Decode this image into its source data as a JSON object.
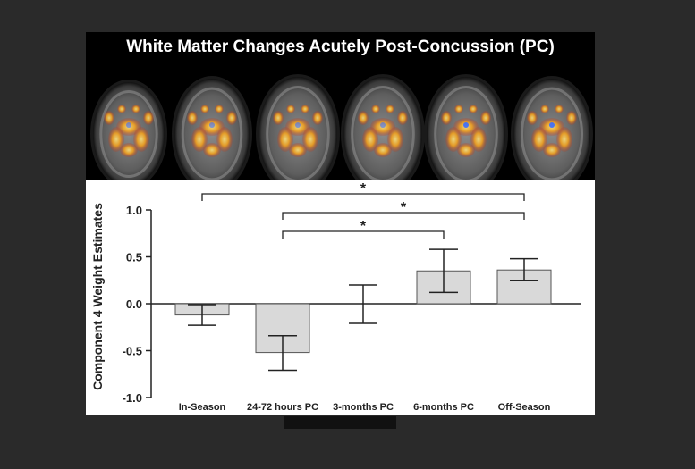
{
  "figure_title": "White Matter Changes Acutely Post-Concussion (PC)",
  "colors": {
    "bar_fill": "#d9d9d9",
    "bar_stroke": "#555555",
    "page_background": "#2a2a2a",
    "figure_background": "#000000"
  },
  "chart_data": {
    "type": "bar",
    "title": "",
    "xlabel": "",
    "ylabel": "Component 4 Weight Estimates",
    "ylim": [
      -1.0,
      1.0
    ],
    "yticks": [
      "1.0",
      "0.5",
      "0.0",
      "-0.5",
      "-1.0"
    ],
    "ytick_values": [
      1.0,
      0.5,
      0.0,
      -0.5,
      -1.0
    ],
    "categories": [
      "In-Season",
      "24-72 hours PC",
      "3-months PC",
      "6-months PC",
      "Off-Season"
    ],
    "values": [
      -0.12,
      -0.52,
      0.0,
      0.35,
      0.36
    ],
    "error_low": [
      -0.23,
      -0.71,
      -0.21,
      0.12,
      0.25
    ],
    "error_high": [
      -0.01,
      -0.34,
      0.2,
      0.58,
      0.48
    ],
    "significance": [
      {
        "from": "In-Season",
        "to": "Off-Season",
        "label": "*"
      },
      {
        "from": "24-72 hours PC",
        "to": "Off-Season",
        "label": "*"
      },
      {
        "from": "24-72 hours PC",
        "to": "6-months PC",
        "label": "*"
      }
    ],
    "grid": false,
    "legend": "none"
  },
  "brain_slices": [
    "axial-slice-1",
    "axial-slice-2",
    "axial-slice-3",
    "axial-slice-4",
    "axial-slice-5",
    "axial-slice-6"
  ]
}
